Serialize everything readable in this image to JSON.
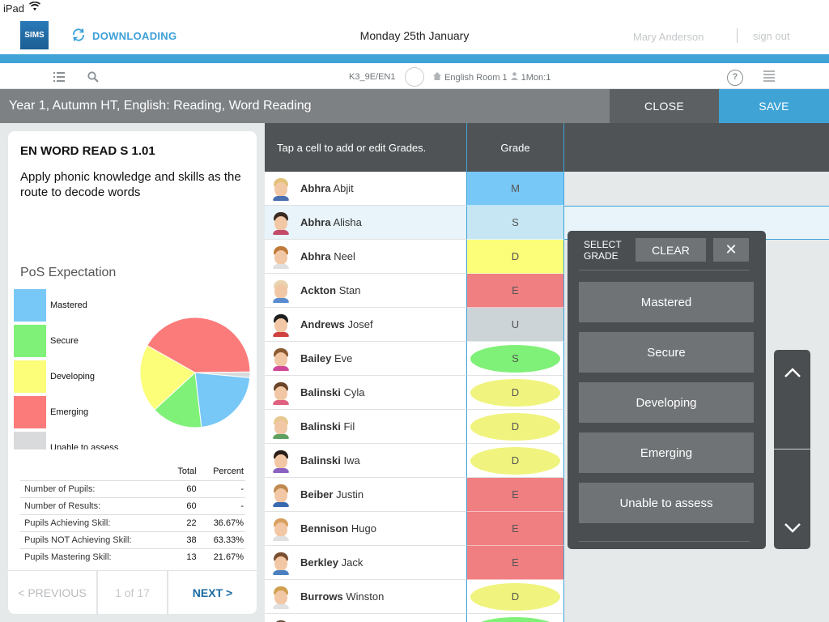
{
  "status": {
    "carrier": "iPad"
  },
  "app": {
    "logo": "SIMS",
    "sync_label": "DOWNLOADING",
    "date": "Monday 25th January",
    "user": "Mary Anderson",
    "signout": "sign out",
    "accent_color": "#3fa3d6"
  },
  "toolbar": {
    "class_code": "K3_9E/EN1",
    "room": "English Room 1",
    "period": "1Mon:1",
    "help": "?"
  },
  "titlebar": {
    "title": "Year  1, Autumn HT, English: Reading, Word Reading",
    "close": "CLOSE",
    "save": "SAVE"
  },
  "card": {
    "code": "EN WORD READ S  1.01",
    "description": "Apply phonic knowledge and skills as the route to decode words",
    "pos_title": "PoS Expectation",
    "legend": [
      {
        "label": "Mastered",
        "color": "#78c8f7"
      },
      {
        "label": "Secure",
        "color": "#80f178"
      },
      {
        "label": "Developing",
        "color": "#fcfd78"
      },
      {
        "label": "Emerging",
        "color": "#fb7b7b"
      },
      {
        "label": "Unable to assess",
        "color": "#d8dadb"
      }
    ],
    "stats_headers": {
      "total": "Total",
      "percent": "Percent"
    },
    "stats": [
      {
        "label": "Number of Pupils:",
        "total": "60",
        "percent": "-"
      },
      {
        "label": "Number of Results:",
        "total": "60",
        "percent": "-"
      },
      {
        "label": "Pupils Achieving Skill:",
        "total": "22",
        "percent": "36.67%"
      },
      {
        "label": "Pupils NOT Achieving Skill:",
        "total": "38",
        "percent": "63.33%"
      },
      {
        "label": "Pupils Mastering Skill:",
        "total": "13",
        "percent": "21.67%"
      }
    ],
    "pager": {
      "prev": "< PREVIOUS",
      "page": "1 of 17",
      "next": "NEXT >"
    }
  },
  "chart_data": {
    "type": "pie",
    "categories": [
      "Mastered",
      "Secure",
      "Developing",
      "Emerging",
      "Unable to assess"
    ],
    "values": [
      13,
      9,
      12,
      25,
      1
    ],
    "colors": [
      "#78c8f7",
      "#80f178",
      "#fcfd78",
      "#fb7b7b",
      "#d8dadb"
    ]
  },
  "grid": {
    "hint": "Tap a cell to add or edit Grades.",
    "grade_header": "Grade",
    "rows": [
      {
        "surname": "Abhra",
        "forename": "Abjit",
        "grade": "M",
        "style": "block",
        "color": "#78c8f7",
        "hair": "#e2c27a",
        "shirt": "#4a70b0"
      },
      {
        "surname": "Abhra",
        "forename": "Alisha",
        "grade": "S",
        "style": "block",
        "color": "#c6e6f4",
        "hair": "#3a2a22",
        "shirt": "#c44a6a",
        "selected": true
      },
      {
        "surname": "Abhra",
        "forename": "Neel",
        "grade": "D",
        "style": "block",
        "color": "#fcfd78",
        "hair": "#c07a3a",
        "shirt": "#e0e0e0"
      },
      {
        "surname": "Ackton",
        "forename": "Stan",
        "grade": "E",
        "style": "block",
        "color": "#f07f82",
        "hair": "#e9d3b0",
        "shirt": "#5a8ad0"
      },
      {
        "surname": "Andrews",
        "forename": "Josef",
        "grade": "U",
        "style": "block",
        "color": "#ccd4d8",
        "hair": "#1e1e1e",
        "shirt": "#d04040"
      },
      {
        "surname": "Bailey",
        "forename": "Eve",
        "grade": "S",
        "style": "oval",
        "color": "#80f178",
        "hair": "#8a5a30",
        "shirt": "#d04a9a"
      },
      {
        "surname": "Balinski",
        "forename": "Cyla",
        "grade": "D",
        "style": "oval",
        "color": "#f0f47e",
        "hair": "#6a4428",
        "shirt": "#e06080"
      },
      {
        "surname": "Balinski",
        "forename": "Fil",
        "grade": "D",
        "style": "oval",
        "color": "#f0f47e",
        "hair": "#e8c890",
        "shirt": "#60a060"
      },
      {
        "surname": "Balinski",
        "forename": "Iwa",
        "grade": "D",
        "style": "oval",
        "color": "#f0f47e",
        "hair": "#2a1e18",
        "shirt": "#8a60c0"
      },
      {
        "surname": "Beiber",
        "forename": "Justin",
        "grade": "E",
        "style": "block",
        "color": "#f07f82",
        "hair": "#c08a50",
        "shirt": "#3a6ab0"
      },
      {
        "surname": "Bennison",
        "forename": "Hugo",
        "grade": "E",
        "style": "block",
        "color": "#f07f82",
        "hair": "#d8a060",
        "shirt": "#e0e0e0"
      },
      {
        "surname": "Berkley",
        "forename": "Jack",
        "grade": "E",
        "style": "block",
        "color": "#f07f82",
        "hair": "#7a5030",
        "shirt": "#4a80c0"
      },
      {
        "surname": "Burrows",
        "forename": "Winston",
        "grade": "D",
        "style": "oval",
        "color": "#f0f47e",
        "hair": "#d0a050",
        "shirt": "#e0e0e0"
      },
      {
        "surname": "",
        "forename": "",
        "grade": "",
        "style": "oval",
        "color": "#80f178",
        "hair": "#6a4a30",
        "shirt": "#c04a4a"
      }
    ]
  },
  "popup": {
    "title": "SELECT GRADE",
    "clear": "CLEAR",
    "close": "✕",
    "options": [
      "Mastered",
      "Secure",
      "Developing",
      "Emerging",
      "Unable to assess"
    ]
  }
}
